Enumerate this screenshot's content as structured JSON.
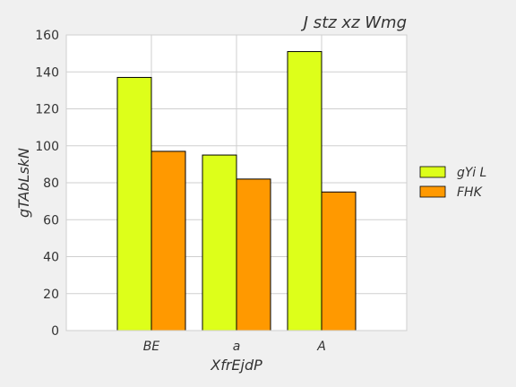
{
  "chart_data": {
    "type": "bar",
    "title": "J stz xz Wmg",
    "xlabel": "XfrEjdP",
    "ylabel": "gTAbLskN",
    "categories": [
      "BE",
      "a",
      "A"
    ],
    "series": [
      {
        "name": "gYi L",
        "values": [
          137,
          95,
          151
        ],
        "color": "#ddff1a"
      },
      {
        "name": "FHK",
        "values": [
          97,
          82,
          75
        ],
        "color": "#ff9900"
      }
    ],
    "ylim": [
      0,
      160
    ],
    "yticks": [
      0,
      20,
      40,
      60,
      80,
      100,
      120,
      140,
      160
    ],
    "grid": true,
    "legend_position": "right"
  }
}
